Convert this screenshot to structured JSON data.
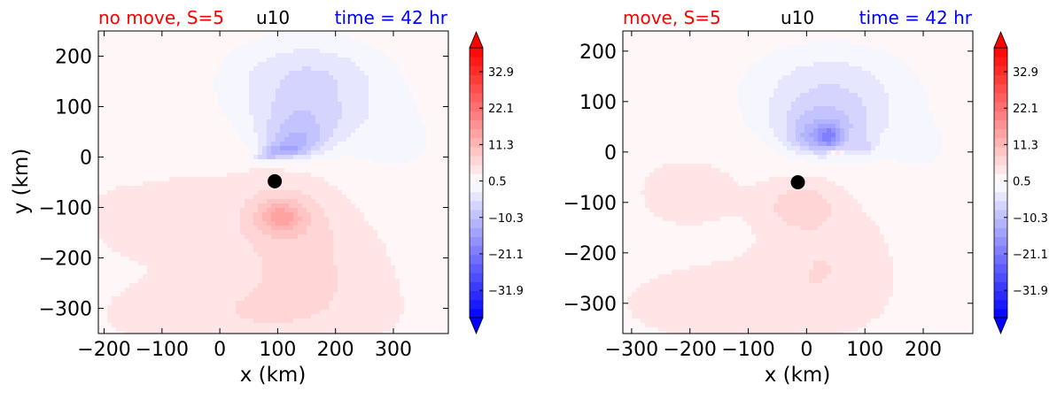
{
  "colors": {
    "title_left": "#ff0000",
    "title_center": "#000000",
    "title_right": "#0000ff",
    "marker": "#000000",
    "neg_max": "#0000ff",
    "pos_max": "#ff0000",
    "neutral": "#ffffff"
  },
  "colorbar": {
    "tick_labels": [
      "32.9",
      "22.1",
      "11.3",
      "0.5",
      "−10.3",
      "−21.1",
      "−31.9"
    ],
    "tick_values": [
      32.9,
      22.1,
      11.3,
      0.5,
      -10.3,
      -21.1,
      -31.9
    ],
    "range": [
      -40,
      40
    ],
    "extend": "both",
    "levels": 30,
    "colormap": "bwr"
  },
  "chart_data": [
    {
      "type": "heatmap",
      "title_left": "no move, S=5",
      "title_center": "u10",
      "title_right": "time = 42 hr",
      "xlabel": "x (km)",
      "ylabel": "y (km)",
      "xlim": [
        -210,
        395
      ],
      "ylim": [
        -350,
        250
      ],
      "xticks": [
        -200,
        -100,
        0,
        100,
        200,
        300
      ],
      "xtick_labels": [
        "−200",
        "−100",
        "0",
        "100",
        "200",
        "300"
      ],
      "yticks": [
        -300,
        -200,
        -100,
        0,
        100,
        200
      ],
      "ytick_labels": [
        "−300",
        "−200",
        "−100",
        "0",
        "100",
        "200"
      ],
      "storm_center": {
        "x": 95,
        "y": -48
      },
      "field_features": [
        {
          "kind": "background",
          "value": 2.0
        },
        {
          "kind": "blob",
          "x": 150,
          "y": 150,
          "sx": 135,
          "sy": 85,
          "value": -8.0
        },
        {
          "kind": "blob",
          "x": 140,
          "y": 70,
          "sx": 85,
          "sy": 45,
          "value": -6.0
        },
        {
          "kind": "blob",
          "x": 130,
          "y": 30,
          "sx": 55,
          "sy": 30,
          "value": -9.0
        },
        {
          "kind": "blob",
          "x": 110,
          "y": 12,
          "sx": 38,
          "sy": 14,
          "value": -9.0
        },
        {
          "kind": "blob",
          "x": 80,
          "y": 0,
          "sx": 22,
          "sy": 9,
          "value": -6.0
        },
        {
          "kind": "blob",
          "x": 300,
          "y": 30,
          "sx": 110,
          "sy": 90,
          "value": -2.5
        },
        {
          "kind": "blob",
          "x": -150,
          "y": 0,
          "sx": 60,
          "sy": 40,
          "value": -1.5
        },
        {
          "kind": "blob",
          "x": 110,
          "y": -115,
          "sx": 85,
          "sy": 70,
          "value": 5.5
        },
        {
          "kind": "blob",
          "x": 105,
          "y": -118,
          "sx": 35,
          "sy": 28,
          "value": 7.0
        },
        {
          "kind": "blob",
          "x": 150,
          "y": -220,
          "sx": 110,
          "sy": 90,
          "value": 3.5
        },
        {
          "kind": "blob",
          "x": 50,
          "y": -310,
          "sx": 200,
          "sy": 70,
          "value": 3.0
        },
        {
          "kind": "blob",
          "x": -100,
          "y": -120,
          "sx": 120,
          "sy": 80,
          "value": 2.0
        }
      ]
    },
    {
      "type": "heatmap",
      "title_left": "move, S=5",
      "title_center": "u10",
      "title_right": "time = 42 hr",
      "xlabel": "x (km)",
      "ylabel": "",
      "xlim": [
        -315,
        285
      ],
      "ylim": [
        -360,
        240
      ],
      "xticks": [
        -300,
        -200,
        -100,
        0,
        100,
        200
      ],
      "xtick_labels": [
        "−300",
        "−200",
        "−100",
        "0",
        "100",
        "200"
      ],
      "yticks": [
        -300,
        -200,
        -100,
        0,
        100,
        200
      ],
      "ytick_labels": [
        "−300",
        "−200",
        "−100",
        "0",
        "100",
        "200"
      ],
      "storm_center": {
        "x": -15,
        "y": -60
      },
      "field_features": [
        {
          "kind": "background",
          "value": 2.0
        },
        {
          "kind": "blob",
          "x": 40,
          "y": 120,
          "sx": 140,
          "sy": 90,
          "value": -7.0
        },
        {
          "kind": "blob",
          "x": 30,
          "y": 50,
          "sx": 85,
          "sy": 50,
          "value": -7.0
        },
        {
          "kind": "blob",
          "x": 20,
          "y": 25,
          "sx": 45,
          "sy": 30,
          "value": -8.0
        },
        {
          "kind": "blob",
          "x": 40,
          "y": 30,
          "sx": 18,
          "sy": 22,
          "value": -8.0
        },
        {
          "kind": "blob",
          "x": 95,
          "y": 10,
          "sx": 22,
          "sy": 18,
          "value": -5.0
        },
        {
          "kind": "blob",
          "x": 50,
          "y": -2,
          "sx": 8,
          "sy": 6,
          "value": 9.0
        },
        {
          "kind": "blob",
          "x": 200,
          "y": 0,
          "sx": 100,
          "sy": 80,
          "value": -2.0
        },
        {
          "kind": "blob",
          "x": -10,
          "y": -105,
          "sx": 60,
          "sy": 45,
          "value": 5.0
        },
        {
          "kind": "blob",
          "x": 30,
          "y": -210,
          "sx": 90,
          "sy": 90,
          "value": 3.0
        },
        {
          "kind": "blob",
          "x": -100,
          "y": -300,
          "sx": 180,
          "sy": 70,
          "value": 2.5
        },
        {
          "kind": "blob",
          "x": -200,
          "y": -80,
          "sx": 90,
          "sy": 70,
          "value": 1.5
        }
      ]
    }
  ]
}
